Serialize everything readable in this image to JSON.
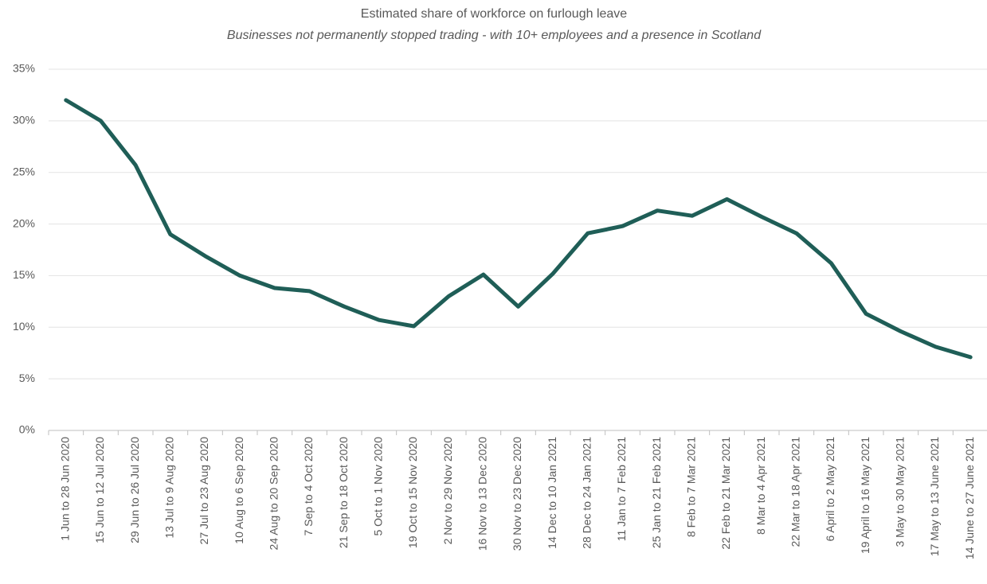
{
  "chart_data": {
    "type": "line",
    "title": "Estimated share of workforce on furlough leave",
    "subtitle": "Businesses not permanently stopped trading - with 10+ employees and a presence in Scotland",
    "categories": [
      "1 Jun to 28 Jun 2020",
      "15 Jun to 12 Jul 2020",
      "29 Jun to 26 Jul 2020",
      "13 Jul to 9 Aug 2020",
      "27 Jul to 23 Aug 2020",
      "10 Aug to 6 Sep 2020",
      "24 Aug to 20 Sep 2020",
      "7 Sep to 4 Oct 2020",
      "21 Sep to 18 Oct 2020",
      "5 Oct to 1 Nov 2020",
      "19 Oct to 15 Nov 2020",
      "2 Nov to 29 Nov 2020",
      "16 Nov to 13 Dec 2020",
      "30 Nov to 23 Dec 2020",
      "14 Dec to 10 Jan 2021",
      "28 Dec to 24 Jan 2021",
      "11 Jan to 7 Feb 2021",
      "25 Jan to 21 Feb 2021",
      "8 Feb to 7 Mar 2021",
      "22 Feb to 21 Mar 2021",
      "8 Mar to 4 Apr 2021",
      "22 Mar to 18 Apr 2021",
      "6 April to 2 May 2021",
      "19 April to 16 May 2021",
      "3 May to 30 May 2021",
      "17 May to 13 June 2021",
      "14 June to 27 June 2021"
    ],
    "series": [
      {
        "name": "Estimated share of workforce on furlough leave",
        "color": "#1f5e57",
        "values": [
          32.0,
          30.0,
          25.7,
          19.0,
          16.9,
          15.0,
          13.8,
          13.5,
          12.0,
          10.7,
          10.1,
          13.0,
          15.1,
          12.0,
          15.2,
          19.1,
          19.8,
          21.3,
          20.8,
          22.4,
          20.7,
          19.1,
          16.2,
          11.3,
          9.6,
          8.1,
          7.1
        ]
      }
    ],
    "ylim": [
      0,
      35
    ],
    "yticks": [
      {
        "value": 0,
        "label": "0%"
      },
      {
        "value": 5,
        "label": "5%"
      },
      {
        "value": 10,
        "label": "10%"
      },
      {
        "value": 15,
        "label": "15%"
      },
      {
        "value": 20,
        "label": "20%"
      },
      {
        "value": 25,
        "label": "25%"
      },
      {
        "value": 30,
        "label": "30%"
      },
      {
        "value": 35,
        "label": "35%"
      }
    ],
    "grid": true
  }
}
